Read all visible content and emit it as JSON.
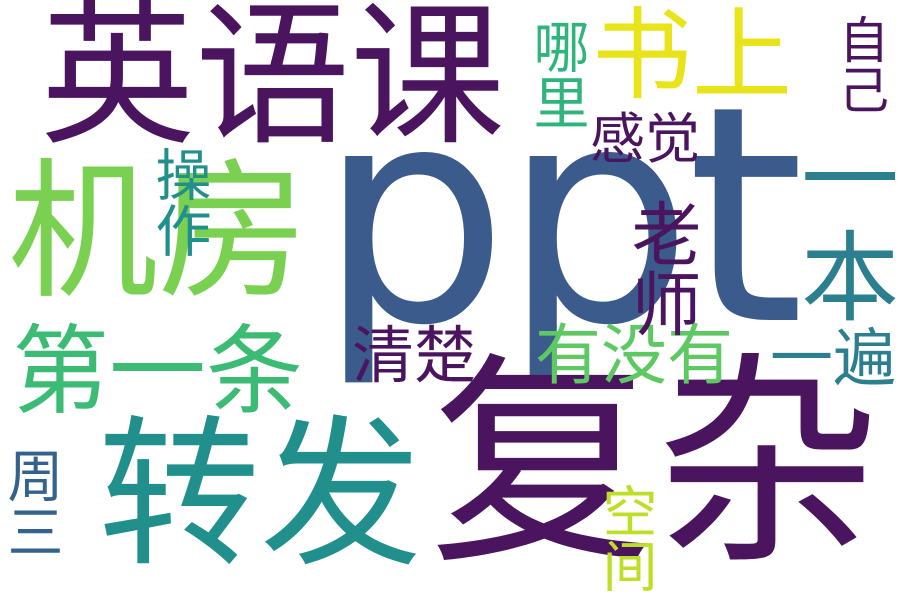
{
  "words": [
    {
      "text": "ppt",
      "color": "#3b5b8c"
    },
    {
      "text": "复杂",
      "color": "#4a145e"
    },
    {
      "text": "英语课",
      "color": "#4a145e"
    },
    {
      "text": "机房",
      "color": "#7ad151"
    },
    {
      "text": "转发",
      "color": "#21908d"
    },
    {
      "text": "书上",
      "color": "#e8e419"
    },
    {
      "text": "第一条",
      "color": "#3cbb75"
    },
    {
      "text": "一本",
      "color": "#2c7f8e"
    },
    {
      "text": "有没有",
      "color": "#5ec962"
    },
    {
      "text": "老师",
      "color": "#4a145e"
    },
    {
      "text": "清楚",
      "color": "#4a145e"
    },
    {
      "text": "一遍",
      "color": "#2c7f8e"
    },
    {
      "text": "操作",
      "color": "#21908d"
    },
    {
      "text": "哪里",
      "color": "#2fb47c"
    },
    {
      "text": "感觉",
      "color": "#4a145e"
    },
    {
      "text": "自己",
      "color": "#4a145e"
    },
    {
      "text": "周三",
      "color": "#33638d"
    },
    {
      "text": "空间",
      "color": "#bddf26"
    }
  ]
}
